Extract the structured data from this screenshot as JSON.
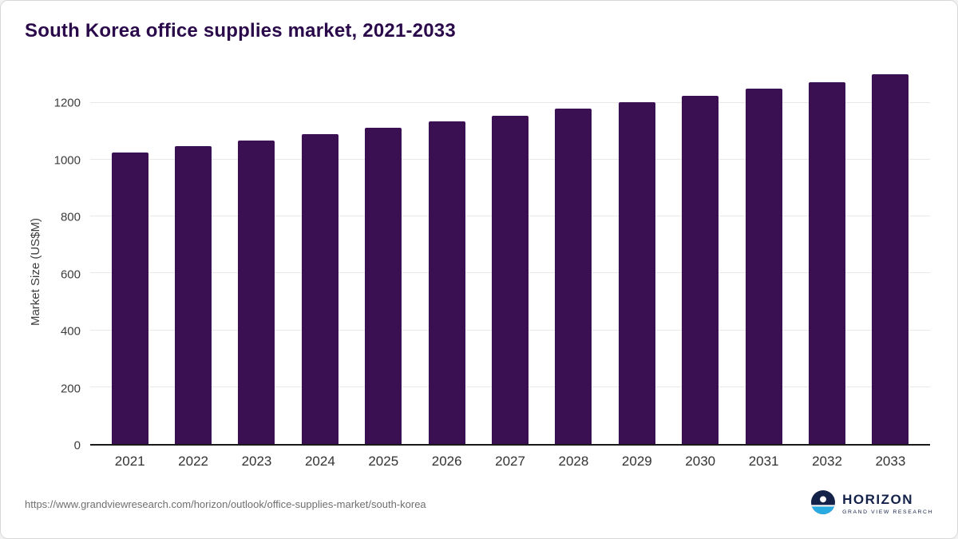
{
  "title": "South Korea office supplies market, 2021-2033",
  "chart_data": {
    "type": "bar",
    "categories": [
      "2021",
      "2022",
      "2023",
      "2024",
      "2025",
      "2026",
      "2027",
      "2028",
      "2029",
      "2030",
      "2031",
      "2032",
      "2033"
    ],
    "values": [
      1025,
      1047,
      1068,
      1090,
      1112,
      1134,
      1156,
      1179,
      1202,
      1225,
      1249,
      1273,
      1300
    ],
    "title": "South Korea office supplies market, 2021-2033",
    "xlabel": "",
    "ylabel": "Market Size (US$M)",
    "yticks": [
      0,
      200,
      400,
      600,
      800,
      1000,
      1200
    ],
    "ylim": [
      0,
      1340
    ],
    "grid": "horizontal",
    "legend": "none"
  },
  "footer": {
    "url": "https://www.grandviewresearch.com/horizon/outlook/office-supplies-market/south-korea",
    "logo": {
      "name": "HORIZON",
      "tagline": "GRAND VIEW RESEARCH"
    }
  },
  "colors": {
    "bar": "#3b1053",
    "title": "#2a0a4a",
    "logo_navy": "#14224a",
    "logo_blue": "#29abe2",
    "gridline": "#e8e8e8",
    "axis_line": "#1a1a1a"
  }
}
